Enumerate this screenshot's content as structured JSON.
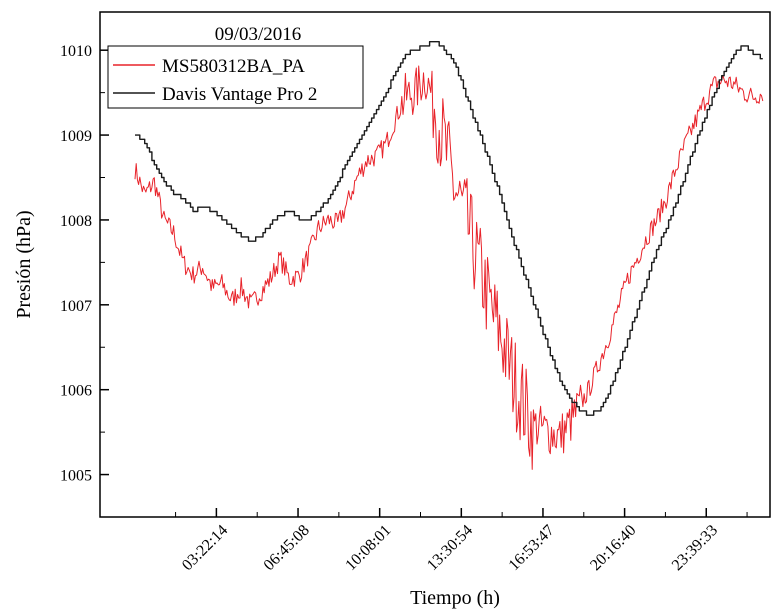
{
  "chart_data": {
    "type": "line",
    "title": "09/03/2016",
    "xlabel": "Tiempo (h)",
    "ylabel": "Presión (hPa)",
    "x_unit": "hours",
    "xlim": [
      -1.45,
      26.3
    ],
    "ylim": [
      1004.5,
      1010.45
    ],
    "y_ticks": [
      1005,
      1006,
      1007,
      1008,
      1009,
      1010
    ],
    "x_ticks": [
      {
        "value": 3.3706,
        "label": "03:22:14"
      },
      {
        "value": 6.7522,
        "label": "06:45:08"
      },
      {
        "value": 10.1336,
        "label": "10:08:01"
      },
      {
        "value": 13.515,
        "label": "13:30:54"
      },
      {
        "value": 16.8964,
        "label": "16:53:47"
      },
      {
        "value": 20.2778,
        "label": "20:16:40"
      },
      {
        "value": 23.6592,
        "label": "23:39:33"
      }
    ],
    "grid": false,
    "legend_position": "top-left",
    "series": [
      {
        "name": "MS580312BA_PA",
        "color": "#e8232a",
        "points": [
          [
            0.0,
            1008.6
          ],
          [
            0.4,
            1008.3
          ],
          [
            0.8,
            1008.45
          ],
          [
            1.2,
            1008.0
          ],
          [
            1.6,
            1007.85
          ],
          [
            2.0,
            1007.5
          ],
          [
            2.4,
            1007.35
          ],
          [
            2.8,
            1007.45
          ],
          [
            3.2,
            1007.2
          ],
          [
            3.6,
            1007.25
          ],
          [
            4.0,
            1007.05
          ],
          [
            4.4,
            1007.2
          ],
          [
            4.8,
            1007.0
          ],
          [
            5.2,
            1007.15
          ],
          [
            5.6,
            1007.3
          ],
          [
            6.0,
            1007.55
          ],
          [
            6.4,
            1007.3
          ],
          [
            6.8,
            1007.35
          ],
          [
            7.2,
            1007.6
          ],
          [
            7.6,
            1007.9
          ],
          [
            8.0,
            1008.0
          ],
          [
            8.4,
            1007.95
          ],
          [
            8.8,
            1008.2
          ],
          [
            9.2,
            1008.5
          ],
          [
            9.6,
            1008.7
          ],
          [
            10.0,
            1008.75
          ],
          [
            10.4,
            1008.9
          ],
          [
            10.8,
            1009.2
          ],
          [
            11.2,
            1009.45
          ],
          [
            11.6,
            1009.5
          ],
          [
            12.0,
            1009.7
          ],
          [
            12.4,
            1009.4
          ],
          [
            12.8,
            1008.9
          ],
          [
            13.2,
            1008.4
          ],
          [
            13.6,
            1008.1
          ],
          [
            14.0,
            1007.7
          ],
          [
            14.4,
            1007.3
          ],
          [
            14.8,
            1006.9
          ],
          [
            15.2,
            1006.6
          ],
          [
            15.6,
            1006.2
          ],
          [
            16.0,
            1005.9
          ],
          [
            16.4,
            1005.6
          ],
          [
            16.8,
            1005.55
          ],
          [
            17.2,
            1005.5
          ],
          [
            17.6,
            1005.45
          ],
          [
            18.0,
            1005.6
          ],
          [
            18.4,
            1005.8
          ],
          [
            18.8,
            1006.0
          ],
          [
            19.2,
            1006.3
          ],
          [
            19.6,
            1006.6
          ],
          [
            20.0,
            1006.95
          ],
          [
            20.4,
            1007.3
          ],
          [
            20.8,
            1007.55
          ],
          [
            21.2,
            1007.8
          ],
          [
            21.6,
            1008.0
          ],
          [
            22.0,
            1008.25
          ],
          [
            22.4,
            1008.6
          ],
          [
            22.8,
            1008.9
          ],
          [
            23.2,
            1009.15
          ],
          [
            23.6,
            1009.4
          ],
          [
            24.0,
            1009.6
          ],
          [
            24.4,
            1009.65
          ],
          [
            24.8,
            1009.6
          ],
          [
            25.2,
            1009.5
          ],
          [
            25.6,
            1009.45
          ],
          [
            26.0,
            1009.5
          ]
        ]
      },
      {
        "name": "Davis Vantage Pro 2",
        "color": "#1a1a1a",
        "points": [
          [
            0.0,
            1009.0
          ],
          [
            0.4,
            1008.9
          ],
          [
            0.8,
            1008.65
          ],
          [
            1.2,
            1008.45
          ],
          [
            1.6,
            1008.3
          ],
          [
            2.0,
            1008.25
          ],
          [
            2.4,
            1008.1
          ],
          [
            2.8,
            1008.15
          ],
          [
            3.2,
            1008.1
          ],
          [
            3.6,
            1008.0
          ],
          [
            4.0,
            1007.9
          ],
          [
            4.4,
            1007.8
          ],
          [
            4.8,
            1007.75
          ],
          [
            5.2,
            1007.8
          ],
          [
            5.6,
            1007.95
          ],
          [
            6.0,
            1008.05
          ],
          [
            6.4,
            1008.1
          ],
          [
            6.8,
            1008.0
          ],
          [
            7.2,
            1008.0
          ],
          [
            7.6,
            1008.1
          ],
          [
            8.0,
            1008.25
          ],
          [
            8.4,
            1008.45
          ],
          [
            8.8,
            1008.7
          ],
          [
            9.2,
            1008.9
          ],
          [
            9.6,
            1009.1
          ],
          [
            10.0,
            1009.3
          ],
          [
            10.4,
            1009.5
          ],
          [
            10.8,
            1009.75
          ],
          [
            11.2,
            1009.95
          ],
          [
            11.6,
            1010.0
          ],
          [
            12.0,
            1010.05
          ],
          [
            12.4,
            1010.1
          ],
          [
            12.8,
            1010.0
          ],
          [
            13.2,
            1009.85
          ],
          [
            13.6,
            1009.55
          ],
          [
            14.0,
            1009.2
          ],
          [
            14.4,
            1008.9
          ],
          [
            14.8,
            1008.55
          ],
          [
            15.2,
            1008.2
          ],
          [
            15.6,
            1007.8
          ],
          [
            16.0,
            1007.45
          ],
          [
            16.4,
            1007.1
          ],
          [
            16.8,
            1006.75
          ],
          [
            17.2,
            1006.4
          ],
          [
            17.6,
            1006.1
          ],
          [
            18.0,
            1005.9
          ],
          [
            18.4,
            1005.75
          ],
          [
            18.8,
            1005.7
          ],
          [
            19.2,
            1005.75
          ],
          [
            19.6,
            1005.95
          ],
          [
            20.0,
            1006.25
          ],
          [
            20.4,
            1006.6
          ],
          [
            20.8,
            1006.95
          ],
          [
            21.2,
            1007.3
          ],
          [
            21.6,
            1007.65
          ],
          [
            22.0,
            1007.9
          ],
          [
            22.4,
            1008.2
          ],
          [
            22.8,
            1008.55
          ],
          [
            23.2,
            1008.9
          ],
          [
            23.6,
            1009.2
          ],
          [
            24.0,
            1009.5
          ],
          [
            24.4,
            1009.75
          ],
          [
            24.8,
            1009.95
          ],
          [
            25.2,
            1010.05
          ],
          [
            25.6,
            1009.95
          ],
          [
            26.0,
            1009.9
          ]
        ]
      }
    ]
  }
}
